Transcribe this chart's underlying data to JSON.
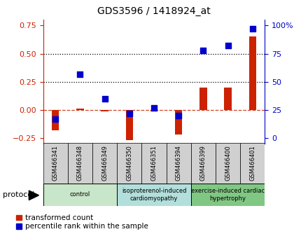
{
  "title": "GDS3596 / 1418924_at",
  "samples": [
    "GSM466341",
    "GSM466348",
    "GSM466349",
    "GSM466350",
    "GSM466351",
    "GSM466394",
    "GSM466399",
    "GSM466400",
    "GSM466401"
  ],
  "transformed_count": [
    -0.18,
    0.01,
    -0.01,
    -0.27,
    -0.01,
    -0.22,
    0.2,
    0.2,
    0.65
  ],
  "percentile_rank_pct": [
    17,
    57,
    35,
    22,
    27,
    20,
    78,
    82,
    97
  ],
  "groups": [
    {
      "label": "control",
      "start": 0,
      "end": 3,
      "color": "#c8e6c9"
    },
    {
      "label": "isoproterenol-induced\ncardiomyopathy",
      "start": 3,
      "end": 6,
      "color": "#b2dfdb"
    },
    {
      "label": "exercise-induced cardiac\nhypertrophy",
      "start": 6,
      "end": 9,
      "color": "#81c784"
    }
  ],
  "bar_color": "#cc2200",
  "dot_color": "#0000cc",
  "ylim_left": [
    -0.3,
    0.8
  ],
  "ylim_right": [
    0,
    106.67
  ],
  "yticks_left": [
    -0.25,
    0.0,
    0.25,
    0.5,
    0.75
  ],
  "yticks_right_vals": [
    0,
    25,
    50,
    75,
    100
  ],
  "yticks_right_labels": [
    "0",
    "25",
    "50",
    "75",
    "100%"
  ],
  "hline_dotted": [
    0.25,
    0.5
  ],
  "hline_dashed": 0.0,
  "bar_width": 0.3,
  "dot_size": 30,
  "protocol_label": "protocol",
  "legend_items": [
    "transformed count",
    "percentile rank within the sample"
  ],
  "background_color": "#ffffff",
  "plot_bg_color": "#ffffff",
  "ticklabel_box_color": "#d0d0d0"
}
